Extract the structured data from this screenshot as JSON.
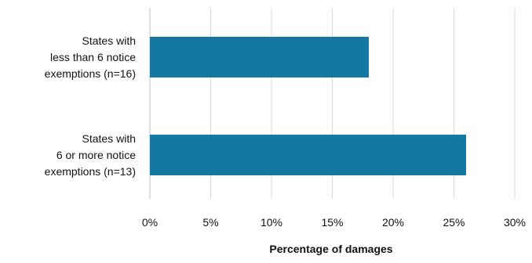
{
  "chart_data": {
    "type": "bar",
    "orientation": "horizontal",
    "categories": [
      [
        "States with",
        "less than 6 notice",
        "exemptions (n=16)"
      ],
      [
        "States with",
        "6 or more notice",
        "exemptions (n=13)"
      ]
    ],
    "values": [
      18,
      26
    ],
    "value_unit": "%",
    "xlabel": "Percentage of damages",
    "ylabel": "",
    "title": "",
    "xlim": [
      0,
      30
    ],
    "xticks": [
      "0%",
      "5%",
      "10%",
      "15%",
      "20%",
      "25%",
      "30%"
    ],
    "grid": "vertical",
    "legend": "none",
    "bar_color": "#1578a3",
    "gridline_color": "#d9d9d9"
  }
}
